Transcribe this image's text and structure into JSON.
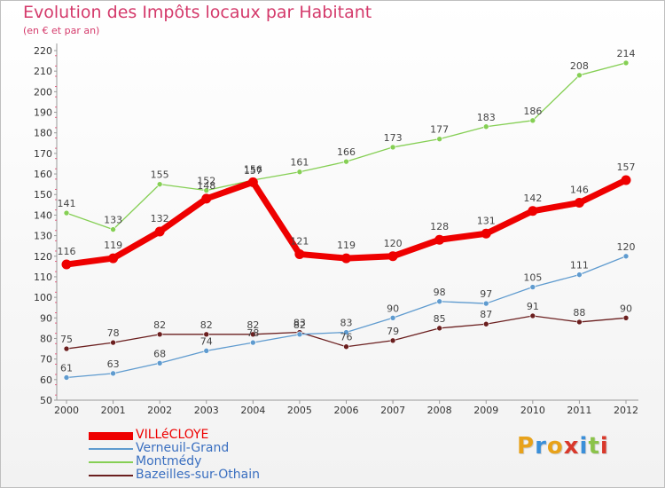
{
  "chart_data": {
    "type": "line",
    "title": "Evolution des Impôts locaux par Habitant",
    "subtitle": "(en € et par an)",
    "categories": [
      "2000",
      "2001",
      "2002",
      "2003",
      "2004",
      "2005",
      "2006",
      "2007",
      "2008",
      "2009",
      "2010",
      "2011",
      "2012"
    ],
    "ylim": [
      50,
      220
    ],
    "yticks": [
      50,
      60,
      70,
      80,
      90,
      100,
      110,
      120,
      130,
      140,
      150,
      160,
      170,
      180,
      190,
      200,
      210,
      220
    ],
    "grid": false,
    "legend_position": "bottom-left",
    "series": [
      {
        "name": "VILLéCLOYE",
        "color": "#ee0000",
        "values": [
          116,
          119,
          132,
          148,
          156,
          121,
          119,
          120,
          128,
          131,
          142,
          146,
          157
        ],
        "thick": true
      },
      {
        "name": "Verneuil-Grand",
        "color": "#5f9bcf",
        "values": [
          61,
          63,
          68,
          74,
          78,
          82,
          83,
          90,
          98,
          97,
          105,
          111,
          120
        ],
        "thick": false
      },
      {
        "name": "Montmédy",
        "color": "#85cf54",
        "values": [
          141,
          133,
          155,
          152,
          157,
          161,
          166,
          173,
          177,
          183,
          186,
          208,
          214
        ],
        "thick": false
      },
      {
        "name": "Bazeilles-sur-Othain",
        "color": "#6b1f1f",
        "values": [
          75,
          78,
          82,
          82,
          82,
          83,
          76,
          79,
          85,
          87,
          91,
          88,
          90
        ],
        "thick": false
      }
    ]
  },
  "legend": {
    "labels": [
      "VILLéCLOYE",
      "Verneuil-Grand",
      "Montmédy",
      "Bazeilles-sur-Othain"
    ],
    "colors": [
      "#ee0000",
      "#5f9bcf",
      "#85cf54",
      "#6b1f1f"
    ]
  },
  "logo": {
    "letters": [
      "P",
      "r",
      "o",
      "x",
      "i",
      "t",
      "i"
    ],
    "colors": [
      "#e8a21a",
      "#3a8fd9",
      "#e8a21a",
      "#d9382b",
      "#3a8fd9",
      "#8bc34a",
      "#d9382b"
    ]
  }
}
